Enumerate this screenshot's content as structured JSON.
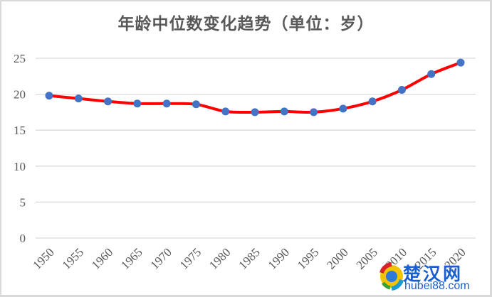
{
  "title": "年龄中位数变化趋势（单位：岁）",
  "chart_data": {
    "type": "line",
    "title": "年龄中位数变化趋势（单位：岁）",
    "xlabel": "",
    "ylabel": "",
    "categories": [
      "1950",
      "1955",
      "1960",
      "1965",
      "1970",
      "1975",
      "1980",
      "1985",
      "1990",
      "1995",
      "2000",
      "2005",
      "2010",
      "2015",
      "2020"
    ],
    "series": [
      {
        "name": "年龄中位数",
        "values": [
          19.8,
          19.4,
          19.0,
          18.7,
          18.7,
          18.6,
          17.6,
          17.5,
          17.6,
          17.5,
          18.0,
          19.0,
          20.6,
          22.8,
          24.4
        ],
        "line_color": "#ff0000",
        "marker_color": "#4472c4"
      }
    ],
    "yticks": [
      "0",
      "5",
      "10",
      "15",
      "20",
      "25"
    ],
    "ylim": [
      0,
      25
    ],
    "grid": true,
    "legend": "none",
    "smooth": true
  },
  "watermark": {
    "cn": "楚汉网",
    "en": "hubei88.com"
  }
}
